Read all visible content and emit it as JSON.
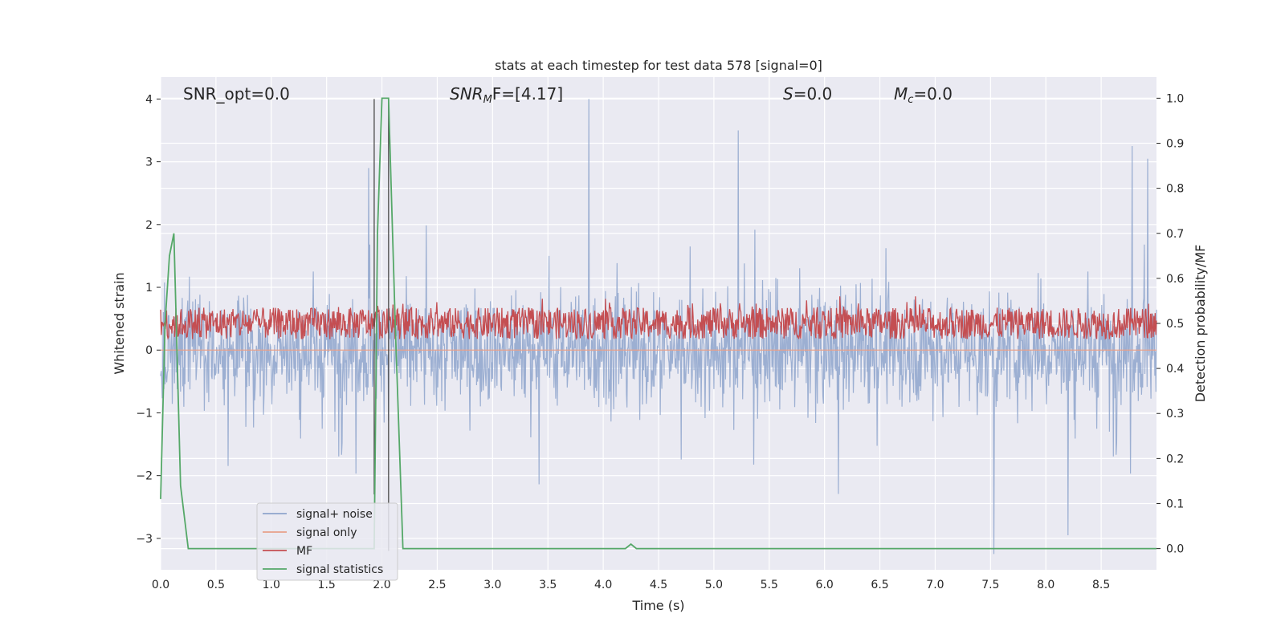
{
  "chart_data": {
    "type": "line",
    "title": "stats at each timestep for test data 578 [signal=0]",
    "xlabel": "Time (s)",
    "ylabel": "Whitened strain",
    "ylabel_right": "Detection probability/MF",
    "xlim": [
      0.0,
      9.0
    ],
    "ylim": [
      -3.5,
      4.35
    ],
    "ylim_right": [
      -0.047,
      1.047
    ],
    "xticks": [
      0.0,
      0.5,
      1.0,
      1.5,
      2.0,
      2.5,
      3.0,
      3.5,
      4.0,
      4.5,
      5.0,
      5.5,
      6.0,
      6.5,
      7.0,
      7.5,
      8.0,
      8.5
    ],
    "xtick_labels": [
      "0.0",
      "0.5",
      "1.0",
      "1.5",
      "2.0",
      "2.5",
      "3.0",
      "3.5",
      "4.0",
      "4.5",
      "5.0",
      "5.5",
      "6.0",
      "6.5",
      "7.0",
      "7.5",
      "8.0",
      "8.5"
    ],
    "yticks": [
      -3,
      -2,
      -1,
      0,
      1,
      2,
      3,
      4
    ],
    "ytick_labels": [
      "−3",
      "−2",
      "−1",
      "0",
      "1",
      "2",
      "3",
      "4"
    ],
    "yticks_right": [
      0.0,
      0.1,
      0.2,
      0.3,
      0.4,
      0.5,
      0.6,
      0.7,
      0.8,
      0.9,
      1.0
    ],
    "ytick_labels_right": [
      "0.0",
      "0.1",
      "0.2",
      "0.3",
      "0.4",
      "0.5",
      "0.6",
      "0.7",
      "0.8",
      "0.9",
      "1.0"
    ],
    "grid": true,
    "legend_position": "lower-left",
    "annotations": {
      "snr_opt": "SNR_opt=0.0",
      "snr_mf_main": "SNR",
      "snr_mf_sub": "M",
      "snr_mf_rest": "F=[4.17]",
      "s": "=0.0",
      "s_symbol": "S",
      "mc_symbol": "M",
      "mc_sub": "c",
      "mc_rest": "=0.0"
    },
    "series": [
      {
        "name": "signal+ noise",
        "color": "#8ea4cc",
        "description_values": {
          "mean": 0.0,
          "typical_range": [
            -1.0,
            1.0
          ],
          "peaks": [
            {
              "x": 3.87,
              "y": 4.0
            },
            {
              "x": 5.22,
              "y": 3.5
            },
            {
              "x": 8.78,
              "y": 3.25
            },
            {
              "x": 8.92,
              "y": 3.05
            },
            {
              "x": 7.53,
              "y": -3.25
            },
            {
              "x": 8.2,
              "y": -2.95
            },
            {
              "x": 1.88,
              "y": 2.9
            }
          ]
        }
      },
      {
        "name": "signal only",
        "color": "#e8a08a",
        "values_constant": 0.0
      },
      {
        "name": "MF",
        "color": "#c44e52",
        "band_right_axis": [
          0.45,
          0.56
        ]
      },
      {
        "name": "signal statistics",
        "color": "#55a868",
        "axis": "right",
        "x": [
          0.0,
          0.04,
          0.08,
          0.12,
          0.18,
          0.25,
          1.9,
          1.93,
          1.96,
          2.0,
          2.06,
          2.12,
          2.19,
          4.2,
          4.25,
          4.3,
          9.0
        ],
        "y": [
          0.11,
          0.5,
          0.65,
          0.7,
          0.14,
          0.0,
          0.0,
          0.0,
          0.7,
          1.0,
          1.0,
          0.5,
          0.0,
          0.0,
          0.01,
          0.0,
          0.0
        ]
      }
    ],
    "vertical_lines": [
      {
        "x": 1.93,
        "y_range": [
          -2.3,
          4.0
        ],
        "color": "#4a4a4a"
      },
      {
        "x": 2.06,
        "y_range": [
          -3.2,
          4.0
        ],
        "color": "#4a4a4a"
      }
    ]
  }
}
